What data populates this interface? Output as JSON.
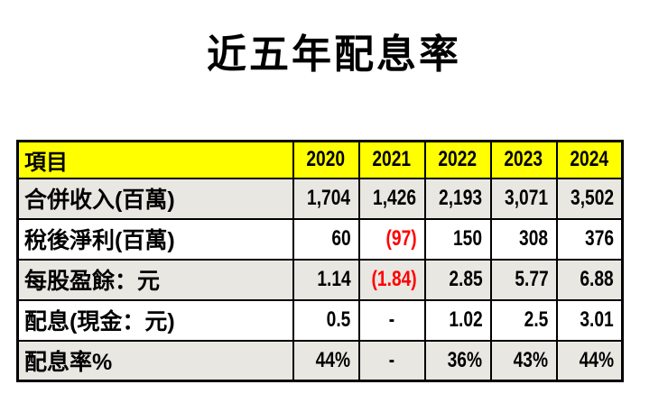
{
  "title": "近五年配息率",
  "chart_data": {
    "type": "table",
    "title": "近五年配息率",
    "columns": [
      "項目",
      "2020",
      "2021",
      "2022",
      "2023",
      "2024"
    ],
    "rows": [
      {
        "label": "合併收入(百萬)",
        "values": [
          "1,704",
          "1,426",
          "2,193",
          "3,071",
          "3,502"
        ],
        "negatives": [
          false,
          false,
          false,
          false,
          false
        ]
      },
      {
        "label": "稅後淨利(百萬)",
        "values": [
          "60",
          "(97)",
          "150",
          "308",
          "376"
        ],
        "negatives": [
          false,
          true,
          false,
          false,
          false
        ]
      },
      {
        "label": "每股盈餘：元",
        "values": [
          "1.14",
          "(1.84)",
          "2.85",
          "5.77",
          "6.88"
        ],
        "negatives": [
          false,
          true,
          false,
          false,
          false
        ]
      },
      {
        "label": "配息(現金：元)",
        "values": [
          "0.5",
          "-",
          "1.02",
          "2.5",
          "3.01"
        ],
        "negatives": [
          false,
          false,
          false,
          false,
          false
        ]
      },
      {
        "label": "配息率%",
        "values": [
          "44%",
          "-",
          "36%",
          "43%",
          "44%"
        ],
        "negatives": [
          false,
          false,
          false,
          false,
          false
        ]
      }
    ],
    "colors": {
      "header_bg": "#ffff00",
      "shade_bg": "#e9e7e2",
      "negative": "#ff0000",
      "border": "#000000"
    }
  }
}
